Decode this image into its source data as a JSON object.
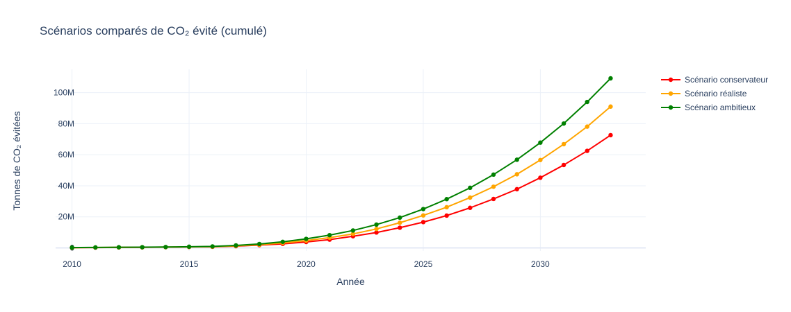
{
  "chart_data": {
    "type": "line",
    "title": "Scénarios comparés de CO₂ évité (cumulé)",
    "xlabel": "Année",
    "ylabel": "Tonnes de CO₂ évitées",
    "x": [
      2010,
      2011,
      2012,
      2013,
      2014,
      2015,
      2016,
      2017,
      2018,
      2019,
      2020,
      2021,
      2022,
      2023,
      2024,
      2025,
      2026,
      2027,
      2028,
      2029,
      2030,
      2031,
      2032,
      2033
    ],
    "xlim": [
      2009.3,
      2034.5
    ],
    "ylim": [
      -2000000,
      115000000
    ],
    "x_ticks": [
      2010,
      2015,
      2020,
      2025,
      2030
    ],
    "y_ticks": [
      0,
      20000000,
      40000000,
      60000000,
      80000000,
      100000000
    ],
    "y_tick_labels": [
      "0",
      "20M",
      "40M",
      "60M",
      "80M",
      "100M"
    ],
    "grid": true,
    "legend_position": "top-right",
    "series": [
      {
        "name": "Scénario conservateur",
        "color": "#ff0000",
        "values": [
          100000,
          200000,
          300000,
          350000,
          450000,
          600000,
          700000,
          1100000,
          1800000,
          2600000,
          3800000,
          5300000,
          7500000,
          9900000,
          13000000,
          16600000,
          20800000,
          25800000,
          31500000,
          37800000,
          45200000,
          53400000,
          62500000,
          72600000
        ]
      },
      {
        "name": "Scénario réaliste",
        "color": "#ffa500",
        "values": [
          150000,
          250000,
          350000,
          400000,
          500000,
          650000,
          800000,
          1300000,
          2100000,
          3200000,
          4700000,
          6600000,
          9000000,
          12200000,
          16200000,
          20900000,
          26200000,
          32400000,
          39400000,
          47400000,
          56600000,
          66800000,
          78100000,
          91000000
        ]
      },
      {
        "name": "Scénario ambitieux",
        "color": "#008000",
        "values": [
          200000,
          300000,
          400000,
          450000,
          550000,
          750000,
          950000,
          1600000,
          2500000,
          3900000,
          5800000,
          8200000,
          11200000,
          15000000,
          19500000,
          25000000,
          31400000,
          38700000,
          47200000,
          56800000,
          67800000,
          80100000,
          94000000,
          109200000
        ]
      }
    ]
  }
}
